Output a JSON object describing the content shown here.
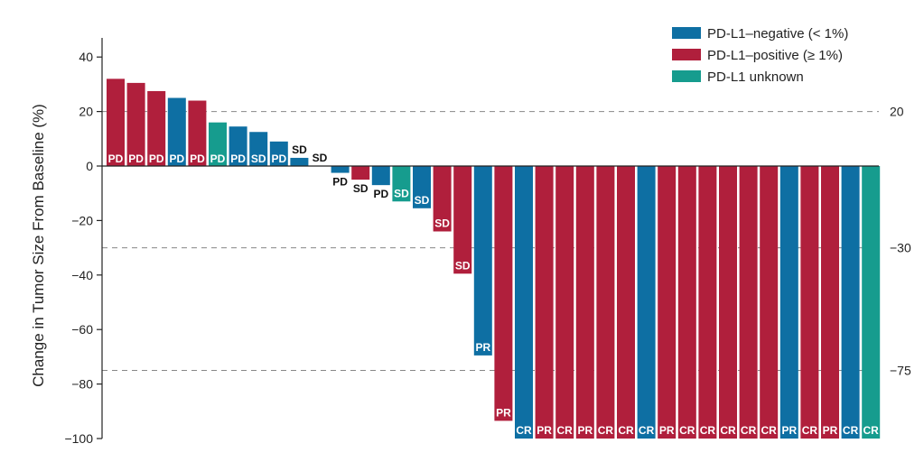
{
  "chart_data": {
    "type": "bar",
    "ylabel": "Change in Tumor Size From Baseline (%)",
    "ylim": [
      -100,
      45
    ],
    "yticks": [
      40,
      20,
      0,
      -20,
      -40,
      -60,
      -80,
      -100
    ],
    "ytick_labels": [
      "40",
      "20",
      "0",
      "−20",
      "−40",
      "−60",
      "−80",
      "−100"
    ],
    "reference_lines": [
      {
        "value": 20,
        "label": "20"
      },
      {
        "value": -30,
        "label": "−30"
      },
      {
        "value": -75,
        "label": "−75"
      }
    ],
    "legend_position": "top-right",
    "legend": [
      {
        "key": "negative",
        "label": "PD-L1–negative (< 1%)",
        "color": "#0e6fa3"
      },
      {
        "key": "positive",
        "label": "PD-L1–positive (≥ 1%)",
        "color": "#b01f3c"
      },
      {
        "key": "unknown",
        "label": "PD-L1 unknown",
        "color": "#169c8e"
      }
    ],
    "bars": [
      {
        "value": 32,
        "group": "positive",
        "label": "PD"
      },
      {
        "value": 30.5,
        "group": "positive",
        "label": "PD"
      },
      {
        "value": 27.5,
        "group": "positive",
        "label": "PD"
      },
      {
        "value": 25,
        "group": "negative",
        "label": "PD"
      },
      {
        "value": 24,
        "group": "positive",
        "label": "PD"
      },
      {
        "value": 16,
        "group": "unknown",
        "label": "PD"
      },
      {
        "value": 14.5,
        "group": "negative",
        "label": "PD"
      },
      {
        "value": 12.5,
        "group": "negative",
        "label": "SD"
      },
      {
        "value": 9,
        "group": "negative",
        "label": "PD"
      },
      {
        "value": 3,
        "group": "negative",
        "label": "SD"
      },
      {
        "value": 0,
        "group": "negative",
        "label": "SD"
      },
      {
        "value": -2.5,
        "group": "negative",
        "label": "PD"
      },
      {
        "value": -5,
        "group": "positive",
        "label": "SD"
      },
      {
        "value": -7,
        "group": "negative",
        "label": "PD"
      },
      {
        "value": -13,
        "group": "unknown",
        "label": "SD"
      },
      {
        "value": -15.5,
        "group": "negative",
        "label": "SD"
      },
      {
        "value": -24,
        "group": "positive",
        "label": "SD"
      },
      {
        "value": -39.5,
        "group": "positive",
        "label": "SD"
      },
      {
        "value": -69.5,
        "group": "negative",
        "label": "PR"
      },
      {
        "value": -93.5,
        "group": "positive",
        "label": "PR"
      },
      {
        "value": -100,
        "group": "negative",
        "label": "CR"
      },
      {
        "value": -100,
        "group": "positive",
        "label": "PR"
      },
      {
        "value": -100,
        "group": "positive",
        "label": "CR"
      },
      {
        "value": -100,
        "group": "positive",
        "label": "PR"
      },
      {
        "value": -100,
        "group": "positive",
        "label": "CR"
      },
      {
        "value": -100,
        "group": "positive",
        "label": "CR"
      },
      {
        "value": -100,
        "group": "negative",
        "label": "CR"
      },
      {
        "value": -100,
        "group": "positive",
        "label": "PR"
      },
      {
        "value": -100,
        "group": "positive",
        "label": "CR"
      },
      {
        "value": -100,
        "group": "positive",
        "label": "CR"
      },
      {
        "value": -100,
        "group": "positive",
        "label": "CR"
      },
      {
        "value": -100,
        "group": "positive",
        "label": "CR"
      },
      {
        "value": -100,
        "group": "positive",
        "label": "CR"
      },
      {
        "value": -100,
        "group": "negative",
        "label": "PR"
      },
      {
        "value": -100,
        "group": "positive",
        "label": "CR"
      },
      {
        "value": -100,
        "group": "positive",
        "label": "PR"
      },
      {
        "value": -100,
        "group": "negative",
        "label": "CR"
      },
      {
        "value": -100,
        "group": "unknown",
        "label": "CR"
      }
    ]
  }
}
